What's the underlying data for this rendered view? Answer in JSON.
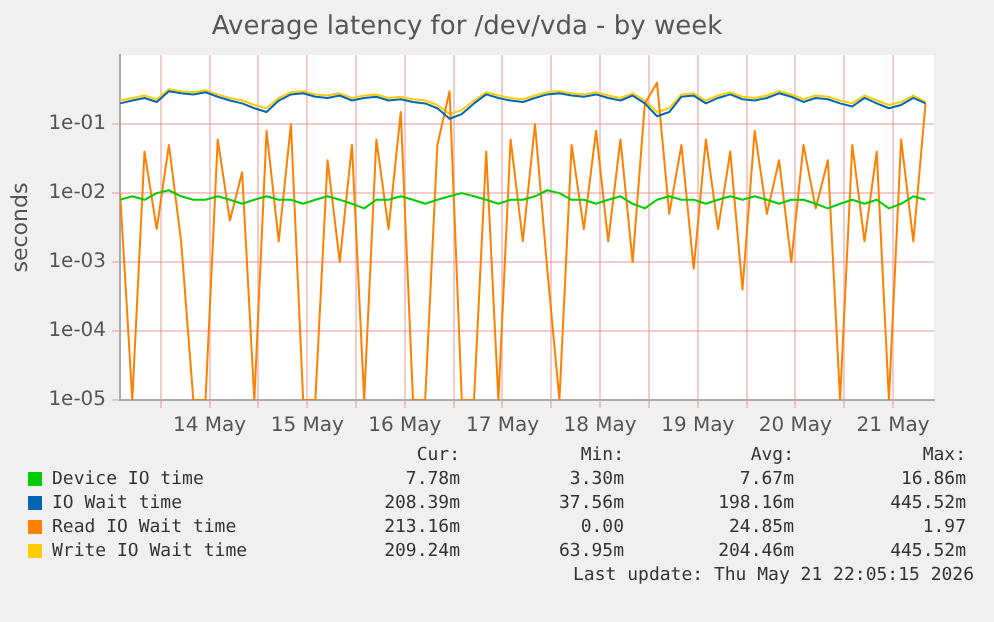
{
  "chart_data": {
    "type": "line",
    "title": "Average latency for /dev/vda - by week",
    "ylabel": "seconds",
    "x": [
      "2026-05-13T14:00",
      "2026-05-13T17:00",
      "2026-05-13T20:00",
      "2026-05-13T23:00",
      "2026-05-14T02:00",
      "2026-05-14T05:00",
      "2026-05-14T08:00",
      "2026-05-14T11:00",
      "2026-05-14T14:00",
      "2026-05-14T17:00",
      "2026-05-14T20:00",
      "2026-05-14T23:00",
      "2026-05-15T02:00",
      "2026-05-15T05:00",
      "2026-05-15T08:00",
      "2026-05-15T11:00",
      "2026-05-15T14:00",
      "2026-05-15T17:00",
      "2026-05-15T20:00",
      "2026-05-15T23:00",
      "2026-05-16T02:00",
      "2026-05-16T05:00",
      "2026-05-16T08:00",
      "2026-05-16T11:00",
      "2026-05-16T14:00",
      "2026-05-16T17:00",
      "2026-05-16T20:00",
      "2026-05-16T23:00",
      "2026-05-17T02:00",
      "2026-05-17T05:00",
      "2026-05-17T08:00",
      "2026-05-17T11:00",
      "2026-05-17T14:00",
      "2026-05-17T17:00",
      "2026-05-17T20:00",
      "2026-05-17T23:00",
      "2026-05-18T02:00",
      "2026-05-18T05:00",
      "2026-05-18T08:00",
      "2026-05-18T11:00",
      "2026-05-18T14:00",
      "2026-05-18T17:00",
      "2026-05-18T20:00",
      "2026-05-18T23:00",
      "2026-05-19T02:00",
      "2026-05-19T05:00",
      "2026-05-19T08:00",
      "2026-05-19T11:00",
      "2026-05-19T14:00",
      "2026-05-19T17:00",
      "2026-05-19T20:00",
      "2026-05-19T23:00",
      "2026-05-20T02:00",
      "2026-05-20T05:00",
      "2026-05-20T08:00",
      "2026-05-20T11:00",
      "2026-05-20T14:00",
      "2026-05-20T17:00",
      "2026-05-20T20:00",
      "2026-05-20T23:00",
      "2026-05-21T02:00",
      "2026-05-21T05:00",
      "2026-05-21T08:00",
      "2026-05-21T11:00",
      "2026-05-21T14:00",
      "2026-05-21T17:00",
      "2026-05-21T20:00"
    ],
    "series": [
      {
        "name": "Device IO time",
        "color": "#00cc00",
        "values": [
          0.008,
          0.009,
          0.008,
          0.01,
          0.011,
          0.009,
          0.008,
          0.008,
          0.009,
          0.008,
          0.007,
          0.008,
          0.009,
          0.008,
          0.008,
          0.007,
          0.008,
          0.009,
          0.008,
          0.007,
          0.006,
          0.008,
          0.008,
          0.009,
          0.008,
          0.007,
          0.008,
          0.009,
          0.01,
          0.009,
          0.008,
          0.007,
          0.008,
          0.008,
          0.009,
          0.011,
          0.01,
          0.008,
          0.008,
          0.007,
          0.008,
          0.009,
          0.007,
          0.006,
          0.008,
          0.009,
          0.008,
          0.008,
          0.007,
          0.008,
          0.009,
          0.008,
          0.009,
          0.008,
          0.007,
          0.008,
          0.008,
          0.007,
          0.006,
          0.007,
          0.008,
          0.007,
          0.008,
          0.006,
          0.007,
          0.009,
          0.008
        ]
      },
      {
        "name": "IO Wait time",
        "color": "#0066b3",
        "values": [
          0.2,
          0.22,
          0.24,
          0.21,
          0.3,
          0.28,
          0.27,
          0.29,
          0.25,
          0.22,
          0.2,
          0.17,
          0.15,
          0.22,
          0.27,
          0.28,
          0.25,
          0.24,
          0.26,
          0.22,
          0.24,
          0.25,
          0.22,
          0.23,
          0.21,
          0.2,
          0.17,
          0.12,
          0.14,
          0.2,
          0.27,
          0.24,
          0.22,
          0.21,
          0.24,
          0.27,
          0.28,
          0.26,
          0.25,
          0.27,
          0.24,
          0.22,
          0.26,
          0.2,
          0.13,
          0.15,
          0.25,
          0.26,
          0.2,
          0.24,
          0.27,
          0.23,
          0.22,
          0.24,
          0.28,
          0.25,
          0.21,
          0.24,
          0.23,
          0.2,
          0.18,
          0.24,
          0.2,
          0.17,
          0.19,
          0.24,
          0.2
        ]
      },
      {
        "name": "Read IO Wait time",
        "color": "#ff8000",
        "values": [
          0.01,
          1e-05,
          0.04,
          0.003,
          0.05,
          0.002,
          1e-05,
          1e-05,
          0.06,
          0.004,
          0.02,
          1e-05,
          0.08,
          0.002,
          0.1,
          1e-05,
          1e-05,
          0.03,
          0.001,
          0.05,
          1e-05,
          0.06,
          0.003,
          0.15,
          1e-05,
          1e-05,
          0.05,
          0.3,
          1e-05,
          1e-05,
          0.04,
          1e-05,
          0.06,
          0.002,
          0.1,
          0.0008,
          1e-05,
          0.05,
          0.003,
          0.08,
          0.002,
          0.06,
          0.001,
          0.2,
          0.4,
          0.005,
          0.05,
          0.0008,
          0.06,
          0.003,
          0.04,
          0.0004,
          0.08,
          0.005,
          0.03,
          0.001,
          0.05,
          0.006,
          0.03,
          1e-05,
          0.05,
          0.002,
          0.04,
          1e-05,
          0.06,
          0.002,
          0.2
        ]
      },
      {
        "name": "Write IO Wait time",
        "color": "#ffcc00",
        "values": [
          0.22,
          0.24,
          0.26,
          0.23,
          0.32,
          0.3,
          0.29,
          0.31,
          0.27,
          0.24,
          0.22,
          0.19,
          0.17,
          0.24,
          0.29,
          0.3,
          0.27,
          0.26,
          0.28,
          0.24,
          0.26,
          0.27,
          0.24,
          0.25,
          0.23,
          0.22,
          0.19,
          0.14,
          0.16,
          0.22,
          0.29,
          0.26,
          0.24,
          0.23,
          0.26,
          0.29,
          0.3,
          0.28,
          0.27,
          0.29,
          0.26,
          0.24,
          0.28,
          0.22,
          0.15,
          0.17,
          0.27,
          0.28,
          0.22,
          0.26,
          0.29,
          0.25,
          0.24,
          0.26,
          0.3,
          0.27,
          0.23,
          0.26,
          0.25,
          0.22,
          0.2,
          0.26,
          0.22,
          0.19,
          0.21,
          0.26,
          0.21
        ]
      }
    ],
    "log": "y",
    "ylim": [
      1e-05,
      1
    ],
    "yticks": [
      {
        "value": 1e-05,
        "label": "1e-05"
      },
      {
        "value": 0.0001,
        "label": "1e-04"
      },
      {
        "value": 0.001,
        "label": "1e-03"
      },
      {
        "value": 0.01,
        "label": "1e-02"
      },
      {
        "value": 0.1,
        "label": "1e-01"
      }
    ],
    "xlim": [
      "2026-05-13T14:00",
      "2026-05-21T22:05"
    ],
    "xticks": [
      {
        "value": "2026-05-14",
        "label": null
      },
      {
        "value": "2026-05-14T12:00",
        "label": "14 May"
      },
      {
        "value": "2026-05-15",
        "label": null
      },
      {
        "value": "2026-05-15T12:00",
        "label": "15 May"
      },
      {
        "value": "2026-05-16",
        "label": null
      },
      {
        "value": "2026-05-16T12:00",
        "label": "16 May"
      },
      {
        "value": "2026-05-17",
        "label": null
      },
      {
        "value": "2026-05-17T12:00",
        "label": "17 May"
      },
      {
        "value": "2026-05-18",
        "label": null
      },
      {
        "value": "2026-05-18T12:00",
        "label": "18 May"
      },
      {
        "value": "2026-05-19",
        "label": null
      },
      {
        "value": "2026-05-19T12:00",
        "label": "19 May"
      },
      {
        "value": "2026-05-20",
        "label": null
      },
      {
        "value": "2026-05-20T12:00",
        "label": "20 May"
      },
      {
        "value": "2026-05-21",
        "label": null
      },
      {
        "value": "2026-05-21T12:00",
        "label": "21 May"
      }
    ],
    "grid": true,
    "legend": "bottom",
    "marker": "none",
    "line_style": "solid",
    "annotations": [
      "Cur:",
      "Min:",
      "Avg:",
      "Max:",
      "7.78m",
      "3.30m",
      "7.67m",
      "16.86m",
      "208.39m",
      "37.56m",
      "198.16m",
      "445.52m",
      "213.16m",
      "0.00",
      "24.85m",
      "1.97",
      "209.24m",
      "63.95m",
      "204.46m",
      "445.52m",
      "Last update: Thu May 21 22:05:15 2026"
    ]
  }
}
